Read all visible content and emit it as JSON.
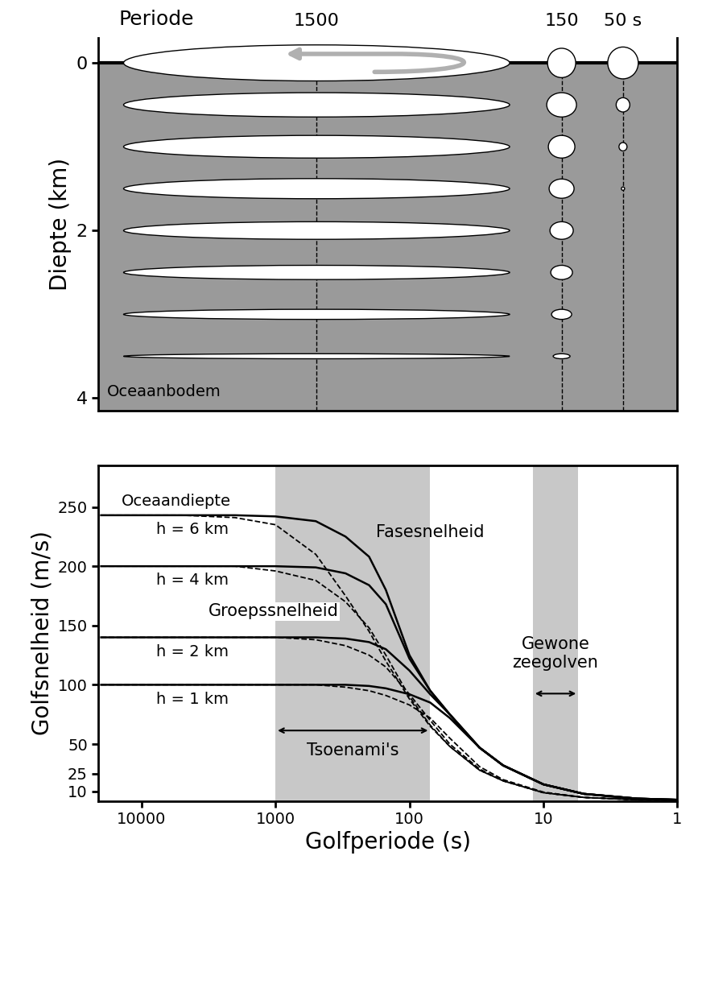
{
  "chart_data": [
    {
      "type": "orbits",
      "header": "Periode",
      "y_label": "Diepte (km)",
      "floor_label": "Oceaanbodem",
      "xlim": [
        0,
        7.2
      ],
      "ylim": [
        4.15,
        -0.3
      ],
      "yticks": [
        0,
        2,
        4
      ],
      "tick_labels": "y",
      "color": "#9a9a9a",
      "columns": [
        {
          "label": "1500",
          "depths": [
            0,
            0.5,
            1.0,
            1.5,
            2.0,
            2.5,
            3.0,
            3.5
          ],
          "widths": [
            4.8,
            4.8,
            4.8,
            4.8,
            4.8,
            4.8,
            4.8,
            4.8
          ],
          "heights": [
            0.43,
            0.29,
            0.27,
            0.24,
            0.21,
            0.17,
            0.12,
            0.06
          ]
        },
        {
          "label": "150",
          "depths": [
            0,
            0.5,
            1.0,
            1.5,
            2.0,
            2.5,
            3.0,
            3.5
          ],
          "widths": [
            0.35,
            0.37,
            0.33,
            0.31,
            0.29,
            0.27,
            0.25,
            0.21
          ],
          "heights": [
            0.35,
            0.29,
            0.27,
            0.23,
            0.21,
            0.17,
            0.12,
            0.06
          ]
        },
        {
          "label": "50 s",
          "depths": [
            0,
            0.5,
            1.0,
            1.5
          ],
          "widths": [
            0.38,
            0.17,
            0.1,
            0.04
          ],
          "heights": [
            0.38,
            0.17,
            0.1,
            0.04
          ]
        }
      ]
    },
    {
      "type": "line",
      "x_label": "Golfperiode (s)",
      "y_label": "Golfsnelheid (m/s)",
      "log": "x",
      "xlim": [
        21000,
        1
      ],
      "xticks": [
        10000,
        1000,
        100,
        10,
        1
      ],
      "ylim": [
        2,
        285
      ],
      "yticks": [
        10,
        25,
        50,
        100,
        150,
        200,
        250
      ],
      "series_title": "Oceaandiepte",
      "x": [
        20000,
        5000,
        2000,
        1000,
        500,
        300,
        200,
        150,
        100,
        70,
        50,
        30,
        20,
        10,
        5,
        2,
        1
      ],
      "phase": {
        "label": "Fasesnelheid",
        "line_style": "solid",
        "color": "#000000",
        "series": [
          {
            "name": "h = 6 km",
            "values": [
              243,
              243,
              243,
              242,
              238,
              225,
              208,
              180,
              125,
              95,
              75,
              47,
              32,
              16,
              8,
              4,
              3
            ]
          },
          {
            "name": "h = 4 km",
            "values": [
              200,
              200,
              200,
              200,
              199,
              194,
              184,
              168,
              122,
              95,
              75,
              47,
              32,
              16,
              8,
              4,
              3
            ]
          },
          {
            "name": "h = 2 km",
            "values": [
              140,
              140,
              140,
              140,
              140,
              139,
              136,
              130,
              112,
              92,
              75,
              47,
              32,
              16,
              8,
              4,
              3
            ]
          },
          {
            "name": "h = 1 km",
            "values": [
              100,
              100,
              100,
              100,
              100,
              100,
              99,
              97,
              92,
              85,
              72,
              47,
              32,
              16,
              8,
              4,
              3
            ]
          }
        ]
      },
      "group": {
        "label": "Groepssnelheid",
        "line_style": "dashed",
        "color": "#000000",
        "series": [
          {
            "values": [
              243,
              243,
              241,
              235,
              210,
              175,
              145,
              120,
              88,
              65,
              48,
              28,
              19,
              9,
              5,
              3,
              2.5
            ]
          },
          {
            "values": [
              200,
              200,
              200,
              196,
              188,
              170,
              148,
              125,
              90,
              66,
              48,
              28,
              19,
              9,
              5,
              3,
              2.5
            ]
          },
          {
            "values": [
              140,
              140,
              140,
              140,
              138,
              133,
              125,
              115,
              92,
              70,
              50,
              29,
              19,
              9,
              5,
              3,
              2.5
            ]
          },
          {
            "values": [
              100,
              100,
              100,
              100,
              100,
              98,
              95,
              91,
              83,
              72,
              55,
              31,
              20,
              9.5,
              5,
              3,
              2.5
            ]
          }
        ]
      },
      "bands": [
        {
          "label": "Tsoenami's",
          "range": [
            1000,
            70
          ],
          "color": "#c8c8c8"
        },
        {
          "label": "Gewone zeegolven",
          "range": [
            12,
            5.5
          ],
          "color": "#c8c8c8"
        }
      ]
    }
  ]
}
